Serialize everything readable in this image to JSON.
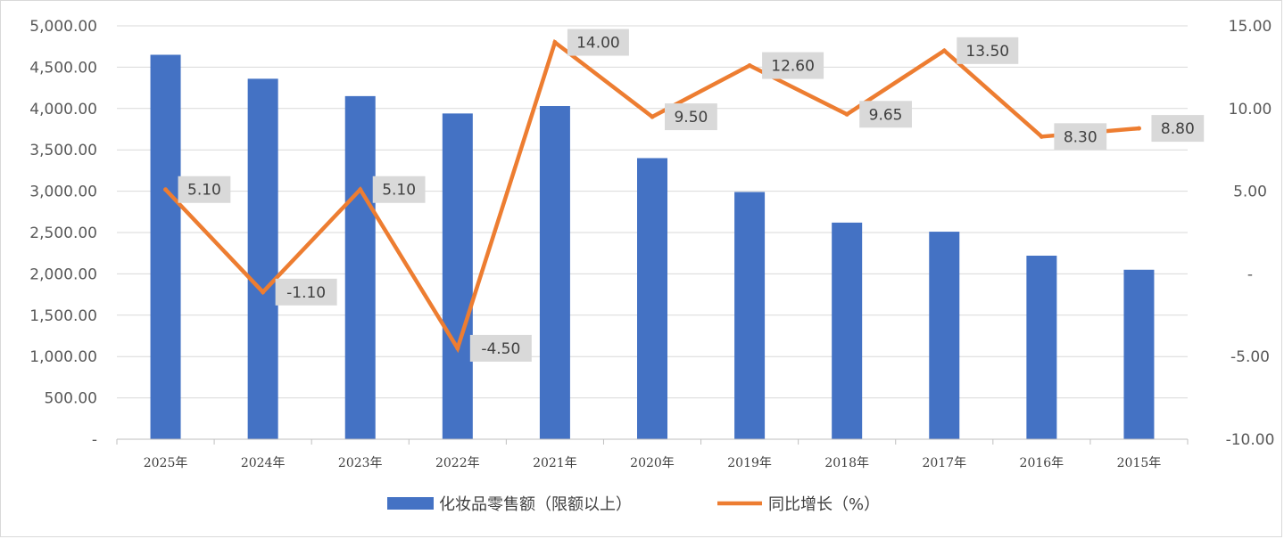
{
  "chart_data": {
    "type": "bar+line",
    "categories": [
      "2025年",
      "2024年",
      "2023年",
      "2022年",
      "2021年",
      "2020年",
      "2019年",
      "2018年",
      "2017年",
      "2016年",
      "2015年"
    ],
    "series": [
      {
        "name": "化妆品零售额（限额以上）",
        "type": "bar",
        "axis": "left",
        "color": "#4472C4",
        "values": [
          4650,
          4360,
          4150,
          3940,
          4030,
          3400,
          2990,
          2620,
          2510,
          2220,
          2050
        ]
      },
      {
        "name": "同比增长（%）",
        "type": "line",
        "axis": "right",
        "color": "#ED7D31",
        "values": [
          5.1,
          -1.1,
          5.1,
          -4.5,
          14.0,
          9.5,
          12.6,
          9.65,
          13.5,
          8.3,
          8.8
        ],
        "data_labels": [
          "5.10",
          "-1.10",
          "5.10",
          "-4.50",
          "14.00",
          "9.50",
          "12.60",
          "9.65",
          "13.50",
          "8.30",
          "8.80"
        ]
      }
    ],
    "left_axis": {
      "ylim": [
        0,
        5000
      ],
      "ticks": [
        0,
        500,
        1000,
        1500,
        2000,
        2500,
        3000,
        3500,
        4000,
        4500,
        5000
      ],
      "tick_labels": [
        "-",
        "500.00",
        "1,000.00",
        "1,500.00",
        "2,000.00",
        "2,500.00",
        "3,000.00",
        "3,500.00",
        "4,000.00",
        "4,500.00",
        "5,000.00"
      ]
    },
    "right_axis": {
      "ylim": [
        -10,
        15
      ],
      "ticks": [
        -10,
        -5,
        0,
        5,
        10,
        15
      ],
      "tick_labels": [
        "-10.00",
        "-5.00",
        "-",
        "5.00",
        "10.00",
        "15.00"
      ]
    },
    "grid": true,
    "legend_position": "bottom"
  }
}
